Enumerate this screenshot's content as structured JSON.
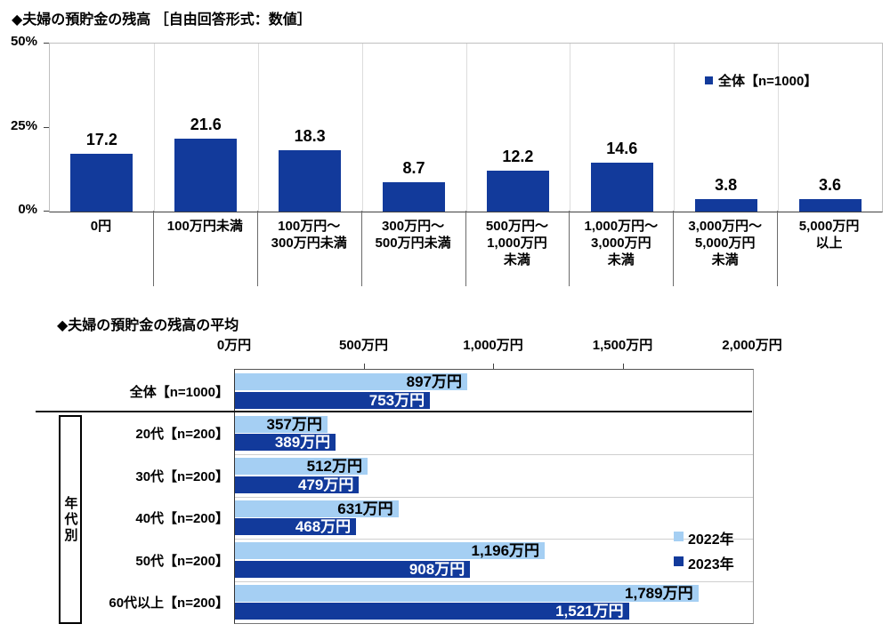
{
  "colors": {
    "navy": "#123A9B",
    "light_blue": "#A5CFF3",
    "grid_light": "#DCDCDC",
    "separator_dark": "#6B6B6B",
    "row_separator": "#CFCFCF"
  },
  "chart_data": [
    {
      "type": "bar",
      "title": "◆夫婦の預貯金の残高 ［自由回答形式：数値］",
      "legend_label": "全体【n=1000】",
      "categories": [
        "0円",
        "100万円未満",
        "100万円～\n300万円未満",
        "300万円～\n500万円未満",
        "500万円～\n1,000万円\n未満",
        "1,000万円～\n3,000万円\n未満",
        "3,000万円～\n5,000万円\n未満",
        "5,000万円\n以上"
      ],
      "values": [
        17.2,
        21.6,
        18.3,
        8.7,
        12.2,
        14.6,
        3.8,
        3.6
      ],
      "ylabel": "%",
      "ylim": [
        0,
        50
      ],
      "y_ticks": [
        "0%",
        "25%",
        "50%"
      ],
      "legend_position": "top-right",
      "grid": "vertical category separators"
    },
    {
      "type": "bar-horizontal",
      "title": "◆夫婦の預貯金の残高の平均",
      "group_label": "年代別",
      "categories": [
        "全体【n=1000】",
        "20代【n=200】",
        "30代【n=200】",
        "40代【n=200】",
        "50代【n=200】",
        "60代以上【n=200】"
      ],
      "series": [
        {
          "name": "2022年",
          "color": "#A5CFF3",
          "values": [
            897,
            357,
            512,
            631,
            1196,
            1789
          ],
          "labels": [
            "897万円",
            "357万円",
            "512万円",
            "631万円",
            "1,196万円",
            "1,789万円"
          ]
        },
        {
          "name": "2023年",
          "color": "#123A9B",
          "values": [
            753,
            389,
            479,
            468,
            908,
            1521
          ],
          "labels": [
            "753万円",
            "389万円",
            "479万円",
            "468万円",
            "908万円",
            "1,521万円"
          ]
        }
      ],
      "xlim": [
        0,
        2000
      ],
      "x_ticks": [
        "0万円",
        "500万円",
        "1,000万円",
        "1,500万円",
        "2,000万円"
      ],
      "unit": "万円",
      "legend_position": "right-middle"
    }
  ]
}
